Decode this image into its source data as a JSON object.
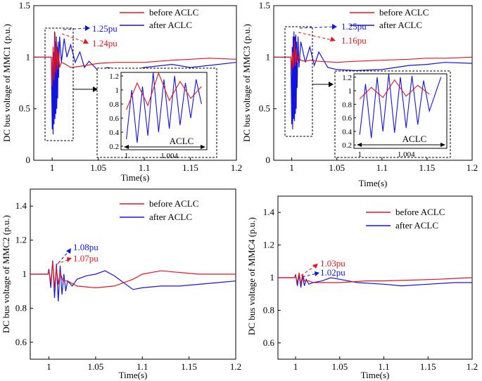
{
  "figure": {
    "panels": [
      {
        "id": "mmc1",
        "ylabel": "DC bus voltage of MMC1 (p.u.)",
        "xlabel": "Time(s)",
        "xlim": [
          0.98,
          1.2
        ],
        "ylim": [
          0,
          1.5
        ],
        "xticks": [
          "1",
          "1.05",
          "1.1",
          "1.15",
          "1.2"
        ],
        "xtick_values": [
          1,
          1.05,
          1.1,
          1.15,
          1.2
        ],
        "yticks": [
          "0",
          "0.5",
          "1",
          "1.5"
        ],
        "ytick_values": [
          0,
          0.5,
          1,
          1.5
        ],
        "legend": {
          "before": "before ACLC",
          "after": "after ACLC",
          "placement": "top-right"
        },
        "peak_before": "1.24pu",
        "peak_after": "1.25pu",
        "zoom_box": [
          0.993,
          1.007,
          0.2,
          1.3
        ],
        "inset": {
          "yticks": [
            "0.2",
            "0.4",
            "0.6",
            "0.8",
            "1",
            "1.2"
          ],
          "ytick_values": [
            0.2,
            0.4,
            0.6,
            0.8,
            1.0,
            1.2
          ],
          "ylim": [
            0.15,
            1.25
          ],
          "xticks": [
            "1",
            "1.004"
          ],
          "label": "ACLC"
        }
      },
      {
        "id": "mmc3",
        "ylabel": "DC bus voltage of MMC3 (p.u.)",
        "xlabel": "Time(s)",
        "xlim": [
          0.98,
          1.2
        ],
        "ylim": [
          0,
          1.5
        ],
        "xticks": [
          "1",
          "1.05",
          "1.1",
          "1.15",
          "1.2"
        ],
        "xtick_values": [
          1,
          1.05,
          1.1,
          1.15,
          1.2
        ],
        "yticks": [
          "0",
          "0.5",
          "1",
          "1.5"
        ],
        "ytick_values": [
          0,
          0.5,
          1,
          1.5
        ],
        "legend": {
          "before": "before ACLC",
          "after": "after ACLC",
          "placement": "top-right"
        },
        "peak_before": "1.16pu",
        "peak_after": "1.25pu",
        "zoom_box": [
          0.993,
          1.007,
          0.25,
          1.3
        ],
        "inset": {
          "yticks": [
            "0.2",
            "0.4",
            "0.6",
            "0.8",
            "1",
            "1.2"
          ],
          "ytick_values": [
            0.2,
            0.4,
            0.6,
            0.8,
            1.0,
            1.2
          ],
          "ylim": [
            0.15,
            1.25
          ],
          "xticks": [
            "1",
            "1.004"
          ],
          "label": "ACLC"
        }
      },
      {
        "id": "mmc2",
        "ylabel": "DC bus voltage of MMC2 (p.u.)",
        "xlabel": "Time(s)",
        "xlim": [
          0.98,
          1.2
        ],
        "ylim": [
          0.5,
          1.5
        ],
        "xticks": [
          "1",
          "1.05",
          "1.1",
          "1.15",
          "1.2"
        ],
        "xtick_values": [
          1,
          1.05,
          1.1,
          1.15,
          1.2
        ],
        "yticks": [
          "0.6",
          "0.8",
          "1",
          "1.2",
          "1.4"
        ],
        "ytick_values": [
          0.6,
          0.8,
          1.0,
          1.2,
          1.4
        ],
        "legend": {
          "before": "before ACLC",
          "after": "after ACLC",
          "placement": "top-right"
        },
        "peak_before": "1.07pu",
        "peak_after": "1.08pu"
      },
      {
        "id": "mmc4",
        "ylabel": "DC bus voltage of MMC4 (p.u.)",
        "xlabel": "Time(s)",
        "xlim": [
          0.98,
          1.2
        ],
        "ylim": [
          0.5,
          1.5
        ],
        "xticks": [
          "1",
          "1.05",
          "1.1",
          "1.15",
          "1.2"
        ],
        "xtick_values": [
          1,
          1.05,
          1.1,
          1.15,
          1.2
        ],
        "yticks": [
          "0.6",
          "0.8",
          "1",
          "1.2",
          "1.4"
        ],
        "ytick_values": [
          0.6,
          0.8,
          1.0,
          1.2,
          1.4
        ],
        "legend": {
          "before": "before ACLC",
          "after": "after ACLC",
          "placement": "top-right"
        },
        "peak_before": "1.03pu",
        "peak_after": "1.02pu"
      }
    ],
    "colors": {
      "before": "#e8141c",
      "after": "#1414e0",
      "axis": "#000000"
    }
  },
  "chart_data": [
    {
      "type": "line",
      "title": "",
      "xlabel": "Time(s)",
      "ylabel": "DC bus voltage of MMC1 (p.u.)",
      "xlim": [
        0.98,
        1.2
      ],
      "ylim": [
        0,
        1.5
      ],
      "series": [
        {
          "name": "before ACLC",
          "x": [
            0.98,
            0.999,
            1.0,
            1.001,
            1.002,
            1.003,
            1.004,
            1.005,
            1.006,
            1.007,
            1.008,
            1.01,
            1.015,
            1.02,
            1.03,
            1.05,
            1.07,
            1.1,
            1.13,
            1.15,
            1.17,
            1.2
          ],
          "y": [
            1.0,
            1.0,
            0.72,
            1.1,
            0.78,
            1.24,
            0.85,
            1.12,
            0.88,
            1.05,
            0.9,
            0.95,
            0.93,
            0.9,
            0.91,
            0.94,
            0.95,
            0.95,
            0.97,
            0.98,
            0.99,
            0.98
          ]
        },
        {
          "name": "after ACLC",
          "x": [
            0.98,
            0.999,
            1.0,
            1.0005,
            1.001,
            1.0015,
            1.002,
            1.0025,
            1.003,
            1.0035,
            1.004,
            1.0045,
            1.005,
            1.0055,
            1.006,
            1.0065,
            1.007,
            1.008,
            1.01,
            1.013,
            1.016,
            1.02,
            1.025,
            1.03,
            1.035,
            1.04,
            1.05,
            1.06,
            1.08,
            1.1,
            1.13,
            1.15,
            1.17,
            1.2
          ],
          "y": [
            1.0,
            1.0,
            0.3,
            1.0,
            0.25,
            1.05,
            0.35,
            1.25,
            0.4,
            1.15,
            0.45,
            1.2,
            0.5,
            1.1,
            0.6,
            1.15,
            0.8,
            1.2,
            0.95,
            1.18,
            1.0,
            1.12,
            0.95,
            1.05,
            0.9,
            0.96,
            0.87,
            0.9,
            0.86,
            0.9,
            0.93,
            0.9,
            0.92,
            0.95
          ]
        }
      ]
    },
    {
      "type": "line",
      "title": "",
      "xlabel": "Time(s)",
      "ylabel": "DC bus voltage of MMC3 (p.u.)",
      "xlim": [
        0.98,
        1.2
      ],
      "ylim": [
        0,
        1.5
      ],
      "series": [
        {
          "name": "before ACLC",
          "x": [
            0.98,
            0.999,
            1.0,
            1.001,
            1.002,
            1.003,
            1.004,
            1.005,
            1.006,
            1.008,
            1.01,
            1.015,
            1.02,
            1.03,
            1.05,
            1.07,
            1.1,
            1.13,
            1.15,
            1.17,
            1.2
          ],
          "y": [
            1.0,
            1.0,
            0.88,
            1.05,
            0.9,
            1.16,
            0.92,
            1.08,
            0.95,
            1.0,
            0.97,
            0.96,
            0.97,
            0.96,
            0.95,
            0.96,
            0.97,
            0.98,
            0.99,
            0.99,
            1.0
          ]
        },
        {
          "name": "after ACLC",
          "x": [
            0.98,
            0.999,
            1.0,
            1.0005,
            1.001,
            1.0015,
            1.002,
            1.0025,
            1.003,
            1.0035,
            1.004,
            1.0045,
            1.005,
            1.0055,
            1.006,
            1.007,
            1.008,
            1.01,
            1.015,
            1.02,
            1.025,
            1.03,
            1.04,
            1.05,
            1.07,
            1.1,
            1.13,
            1.15,
            1.17,
            1.2
          ],
          "y": [
            1.0,
            1.0,
            0.35,
            1.1,
            0.3,
            1.2,
            0.4,
            1.25,
            0.38,
            1.2,
            0.45,
            1.22,
            0.5,
            1.15,
            0.7,
            1.2,
            0.9,
            1.15,
            0.95,
            1.1,
            0.92,
            1.05,
            0.9,
            0.88,
            0.87,
            0.88,
            0.92,
            0.93,
            0.95,
            0.94
          ]
        }
      ]
    },
    {
      "type": "line",
      "title": "",
      "xlabel": "Time(s)",
      "ylabel": "DC bus voltage of MMC2 (p.u.)",
      "xlim": [
        0.98,
        1.2
      ],
      "ylim": [
        0.5,
        1.5
      ],
      "series": [
        {
          "name": "before ACLC",
          "x": [
            0.98,
            0.999,
            1.0,
            1.002,
            1.004,
            1.006,
            1.008,
            1.01,
            1.012,
            1.015,
            1.02,
            1.03,
            1.05,
            1.07,
            1.09,
            1.1,
            1.12,
            1.14,
            1.16,
            1.18,
            1.2
          ],
          "y": [
            1.0,
            1.0,
            1.02,
            0.95,
            1.07,
            0.92,
            1.04,
            0.94,
            1.01,
            0.96,
            0.96,
            0.93,
            0.92,
            0.93,
            0.97,
            1.0,
            1.02,
            1.01,
            1.0,
            1.0,
            1.0
          ]
        },
        {
          "name": "after ACLC",
          "x": [
            0.98,
            0.999,
            1.0,
            1.002,
            1.004,
            1.006,
            1.008,
            1.01,
            1.012,
            1.014,
            1.016,
            1.018,
            1.02,
            1.025,
            1.03,
            1.04,
            1.05,
            1.06,
            1.07,
            1.08,
            1.09,
            1.1,
            1.12,
            1.14,
            1.16,
            1.18,
            1.2
          ],
          "y": [
            1.0,
            1.0,
            1.03,
            0.92,
            1.08,
            0.86,
            1.06,
            0.84,
            1.05,
            0.88,
            1.0,
            0.9,
            0.96,
            0.93,
            0.97,
            0.99,
            1.0,
            1.02,
            0.99,
            0.95,
            0.91,
            0.92,
            0.93,
            0.93,
            0.94,
            0.95,
            0.96
          ]
        }
      ]
    },
    {
      "type": "line",
      "title": "",
      "xlabel": "Time(s)",
      "ylabel": "DC bus voltage of MMC4 (p.u.)",
      "xlim": [
        0.98,
        1.2
      ],
      "ylim": [
        0.5,
        1.5
      ],
      "series": [
        {
          "name": "before ACLC",
          "x": [
            0.98,
            0.999,
            1.0,
            1.002,
            1.004,
            1.006,
            1.008,
            1.01,
            1.015,
            1.02,
            1.05,
            1.08,
            1.1,
            1.13,
            1.16,
            1.2
          ],
          "y": [
            1.0,
            1.0,
            1.01,
            0.97,
            1.03,
            0.96,
            1.02,
            0.98,
            0.98,
            0.97,
            0.97,
            0.98,
            0.98,
            0.985,
            0.99,
            1.0
          ]
        },
        {
          "name": "after ACLC",
          "x": [
            0.98,
            0.999,
            1.0,
            1.002,
            1.004,
            1.006,
            1.008,
            1.01,
            1.012,
            1.015,
            1.02,
            1.03,
            1.04,
            1.05,
            1.07,
            1.1,
            1.12,
            1.15,
            1.18,
            1.2
          ],
          "y": [
            1.0,
            1.0,
            1.02,
            0.95,
            1.02,
            0.94,
            1.01,
            0.95,
            0.99,
            0.96,
            0.97,
            0.98,
            1.0,
            0.99,
            0.97,
            0.96,
            0.95,
            0.96,
            0.97,
            0.97
          ]
        }
      ]
    }
  ]
}
